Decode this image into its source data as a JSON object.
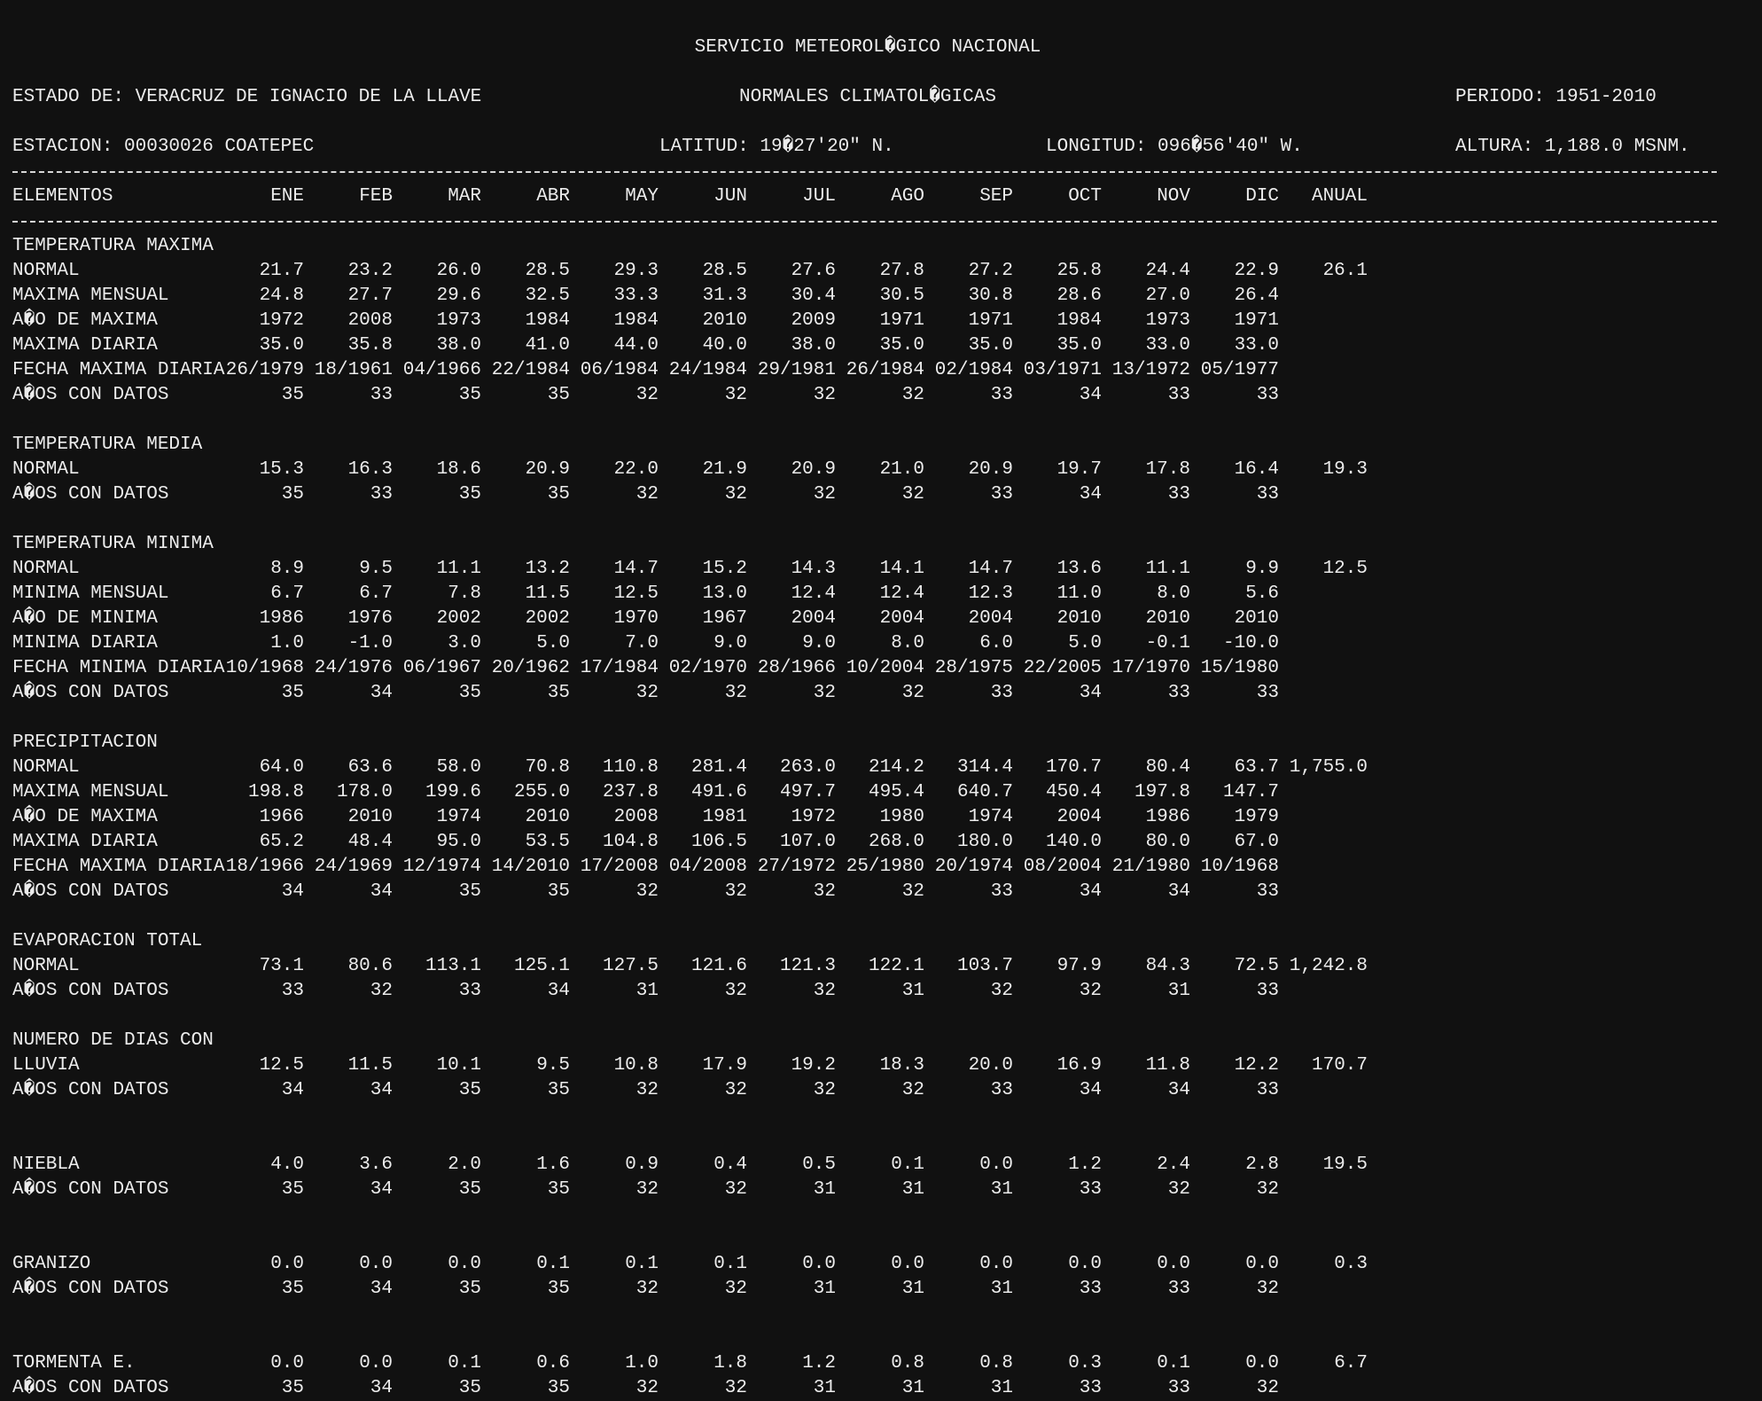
{
  "header": {
    "agency": "SERVICIO METEOROL�GICO NACIONAL",
    "title": "NORMALES CLIMATOL�GICAS",
    "state": "ESTADO DE: VERACRUZ DE IGNACIO DE LA LLAVE",
    "period": "PERIODO: 1951-2010",
    "station": "ESTACION: 00030026 COATEPEC",
    "latitude": "LATITUD: 19�27'20\" N.",
    "longitude": "LONGITUD: 096�56'40\" W.",
    "altitude": "ALTURA: 1,188.0 MSNM."
  },
  "table": {
    "columns": [
      "ELEMENTOS",
      "ENE",
      "FEB",
      "MAR",
      "ABR",
      "MAY",
      "JUN",
      "JUL",
      "AGO",
      "SEP",
      "OCT",
      "NOV",
      "DIC",
      "ANUAL"
    ],
    "sections": [
      {
        "title": "TEMPERATURA MAXIMA",
        "rows": [
          {
            "label": "NORMAL",
            "values": [
              "21.7",
              "23.2",
              "26.0",
              "28.5",
              "29.3",
              "28.5",
              "27.6",
              "27.8",
              "27.2",
              "25.8",
              "24.4",
              "22.9",
              "26.1"
            ]
          },
          {
            "label": "MAXIMA MENSUAL",
            "values": [
              "24.8",
              "27.7",
              "29.6",
              "32.5",
              "33.3",
              "31.3",
              "30.4",
              "30.5",
              "30.8",
              "28.6",
              "27.0",
              "26.4",
              ""
            ]
          },
          {
            "label": "A�O DE MAXIMA",
            "values": [
              "1972",
              "2008",
              "1973",
              "1984",
              "1984",
              "2010",
              "2009",
              "1971",
              "1971",
              "1984",
              "1973",
              "1971",
              ""
            ]
          },
          {
            "label": "MAXIMA DIARIA",
            "values": [
              "35.0",
              "35.8",
              "38.0",
              "41.0",
              "44.0",
              "40.0",
              "38.0",
              "35.0",
              "35.0",
              "35.0",
              "33.0",
              "33.0",
              ""
            ]
          },
          {
            "label": "FECHA MAXIMA DIARIA",
            "values": [
              "26/1979",
              "18/1961",
              "04/1966",
              "22/1984",
              "06/1984",
              "24/1984",
              "29/1981",
              "26/1984",
              "02/1984",
              "03/1971",
              "13/1972",
              "05/1977",
              ""
            ]
          },
          {
            "label": "A�OS CON DATOS",
            "values": [
              "35",
              "33",
              "35",
              "35",
              "32",
              "32",
              "32",
              "32",
              "33",
              "34",
              "33",
              "33",
              ""
            ]
          }
        ]
      },
      {
        "title": "TEMPERATURA MEDIA",
        "rows": [
          {
            "label": "NORMAL",
            "values": [
              "15.3",
              "16.3",
              "18.6",
              "20.9",
              "22.0",
              "21.9",
              "20.9",
              "21.0",
              "20.9",
              "19.7",
              "17.8",
              "16.4",
              "19.3"
            ]
          },
          {
            "label": "A�OS CON DATOS",
            "values": [
              "35",
              "33",
              "35",
              "35",
              "32",
              "32",
              "32",
              "32",
              "33",
              "34",
              "33",
              "33",
              ""
            ]
          }
        ]
      },
      {
        "title": "TEMPERATURA MINIMA",
        "rows": [
          {
            "label": "NORMAL",
            "values": [
              "8.9",
              "9.5",
              "11.1",
              "13.2",
              "14.7",
              "15.2",
              "14.3",
              "14.1",
              "14.7",
              "13.6",
              "11.1",
              "9.9",
              "12.5"
            ]
          },
          {
            "label": "MINIMA MENSUAL",
            "values": [
              "6.7",
              "6.7",
              "7.8",
              "11.5",
              "12.5",
              "13.0",
              "12.4",
              "12.4",
              "12.3",
              "11.0",
              "8.0",
              "5.6",
              ""
            ]
          },
          {
            "label": "A�O DE MINIMA",
            "values": [
              "1986",
              "1976",
              "2002",
              "2002",
              "1970",
              "1967",
              "2004",
              "2004",
              "2004",
              "2010",
              "2010",
              "2010",
              ""
            ]
          },
          {
            "label": "MINIMA DIARIA",
            "values": [
              "1.0",
              "-1.0",
              "3.0",
              "5.0",
              "7.0",
              "9.0",
              "9.0",
              "8.0",
              "6.0",
              "5.0",
              "-0.1",
              "-10.0",
              ""
            ]
          },
          {
            "label": "FECHA MINIMA DIARIA",
            "values": [
              "10/1968",
              "24/1976",
              "06/1967",
              "20/1962",
              "17/1984",
              "02/1970",
              "28/1966",
              "10/2004",
              "28/1975",
              "22/2005",
              "17/1970",
              "15/1980",
              ""
            ]
          },
          {
            "label": "A�OS CON DATOS",
            "values": [
              "35",
              "34",
              "35",
              "35",
              "32",
              "32",
              "32",
              "32",
              "33",
              "34",
              "33",
              "33",
              ""
            ]
          }
        ]
      },
      {
        "title": "PRECIPITACION",
        "rows": [
          {
            "label": "NORMAL",
            "values": [
              "64.0",
              "63.6",
              "58.0",
              "70.8",
              "110.8",
              "281.4",
              "263.0",
              "214.2",
              "314.4",
              "170.7",
              "80.4",
              "63.7",
              "1,755.0"
            ]
          },
          {
            "label": "MAXIMA MENSUAL",
            "values": [
              "198.8",
              "178.0",
              "199.6",
              "255.0",
              "237.8",
              "491.6",
              "497.7",
              "495.4",
              "640.7",
              "450.4",
              "197.8",
              "147.7",
              ""
            ]
          },
          {
            "label": "A�O DE MAXIMA",
            "values": [
              "1966",
              "2010",
              "1974",
              "2010",
              "2008",
              "1981",
              "1972",
              "1980",
              "1974",
              "2004",
              "1986",
              "1979",
              ""
            ]
          },
          {
            "label": "MAXIMA DIARIA",
            "values": [
              "65.2",
              "48.4",
              "95.0",
              "53.5",
              "104.8",
              "106.5",
              "107.0",
              "268.0",
              "180.0",
              "140.0",
              "80.0",
              "67.0",
              ""
            ]
          },
          {
            "label": "FECHA MAXIMA DIARIA",
            "values": [
              "18/1966",
              "24/1969",
              "12/1974",
              "14/2010",
              "17/2008",
              "04/2008",
              "27/1972",
              "25/1980",
              "20/1974",
              "08/2004",
              "21/1980",
              "10/1968",
              ""
            ]
          },
          {
            "label": "A�OS CON DATOS",
            "values": [
              "34",
              "34",
              "35",
              "35",
              "32",
              "32",
              "32",
              "32",
              "33",
              "34",
              "34",
              "33",
              ""
            ]
          }
        ]
      },
      {
        "title": "EVAPORACION TOTAL",
        "rows": [
          {
            "label": "NORMAL",
            "values": [
              "73.1",
              "80.6",
              "113.1",
              "125.1",
              "127.5",
              "121.6",
              "121.3",
              "122.1",
              "103.7",
              "97.9",
              "84.3",
              "72.5",
              "1,242.8"
            ]
          },
          {
            "label": "A�OS CON DATOS",
            "values": [
              "33",
              "32",
              "33",
              "34",
              "31",
              "32",
              "32",
              "31",
              "32",
              "32",
              "31",
              "33",
              ""
            ]
          }
        ]
      },
      {
        "title": "NUMERO DE DIAS CON",
        "rows": [
          {
            "label": "LLUVIA",
            "values": [
              "12.5",
              "11.5",
              "10.1",
              "9.5",
              "10.8",
              "17.9",
              "19.2",
              "18.3",
              "20.0",
              "16.9",
              "11.8",
              "12.2",
              "170.7"
            ]
          },
          {
            "label": "A�OS CON DATOS",
            "values": [
              "34",
              "34",
              "35",
              "35",
              "32",
              "32",
              "32",
              "32",
              "33",
              "34",
              "34",
              "33",
              ""
            ]
          }
        ]
      },
      {
        "title": "",
        "rows": [
          {
            "label": "NIEBLA",
            "values": [
              "4.0",
              "3.6",
              "2.0",
              "1.6",
              "0.9",
              "0.4",
              "0.5",
              "0.1",
              "0.0",
              "1.2",
              "2.4",
              "2.8",
              "19.5"
            ]
          },
          {
            "label": "A�OS CON DATOS",
            "values": [
              "35",
              "34",
              "35",
              "35",
              "32",
              "32",
              "31",
              "31",
              "31",
              "33",
              "32",
              "32",
              ""
            ]
          }
        ]
      },
      {
        "title": "",
        "rows": [
          {
            "label": "GRANIZO",
            "values": [
              "0.0",
              "0.0",
              "0.0",
              "0.1",
              "0.1",
              "0.1",
              "0.0",
              "0.0",
              "0.0",
              "0.0",
              "0.0",
              "0.0",
              "0.3"
            ]
          },
          {
            "label": "A�OS CON DATOS",
            "values": [
              "35",
              "34",
              "35",
              "35",
              "32",
              "32",
              "31",
              "31",
              "31",
              "33",
              "33",
              "32",
              ""
            ]
          }
        ]
      },
      {
        "title": "",
        "rows": [
          {
            "label": "TORMENTA E.",
            "values": [
              "0.0",
              "0.0",
              "0.1",
              "0.6",
              "1.0",
              "1.8",
              "1.2",
              "0.8",
              "0.8",
              "0.3",
              "0.1",
              "0.0",
              "6.7"
            ]
          },
          {
            "label": "A�OS CON DATOS",
            "values": [
              "35",
              "34",
              "35",
              "35",
              "32",
              "32",
              "31",
              "31",
              "31",
              "33",
              "33",
              "32",
              ""
            ]
          }
        ]
      }
    ]
  }
}
